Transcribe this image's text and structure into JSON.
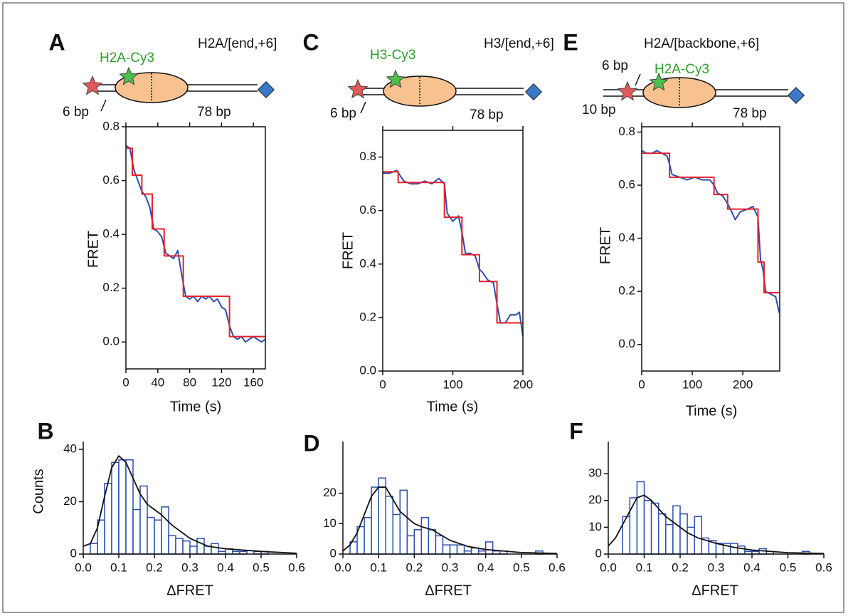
{
  "chart_data": [
    {
      "type": "line",
      "panel": "A",
      "xlabel": "Time (s)",
      "ylabel": "FRET",
      "xlim": [
        0,
        175
      ],
      "xticks": [
        0,
        40,
        80,
        120,
        160
      ],
      "ylim": [
        -0.1,
        0.8
      ],
      "yticks": [
        {
          "value": 0,
          "label": "0.0"
        },
        0.2,
        0.4,
        0.6,
        0.8
      ],
      "series": [
        {
          "color": "#2a4fb0",
          "x": [
            0,
            5,
            10,
            15,
            20,
            25,
            30,
            35,
            40,
            45,
            50,
            55,
            60,
            65,
            70,
            75,
            80,
            85,
            90,
            95,
            100,
            105,
            110,
            115,
            120,
            125,
            130,
            135,
            140,
            145,
            150,
            155,
            160,
            165,
            170,
            175
          ],
          "values": [
            0.73,
            0.72,
            0.64,
            0.6,
            0.56,
            0.54,
            0.5,
            0.42,
            0.41,
            0.39,
            0.33,
            0.32,
            0.31,
            0.34,
            0.25,
            0.17,
            0.16,
            0.17,
            0.15,
            0.17,
            0.16,
            0.17,
            0.15,
            0.16,
            0.13,
            0.12,
            0.06,
            0.02,
            0.01,
            0.02,
            0.0,
            0.01,
            0.02,
            0.01,
            0.0,
            0.01
          ]
        },
        {
          "color": "#e8202a",
          "x": [
            0,
            8,
            8,
            20,
            20,
            33,
            33,
            48,
            48,
            72,
            72,
            130,
            130,
            175
          ],
          "values": [
            0.72,
            0.72,
            0.62,
            0.62,
            0.55,
            0.55,
            0.42,
            0.42,
            0.32,
            0.32,
            0.17,
            0.17,
            0.02,
            0.02
          ]
        }
      ]
    },
    {
      "type": "line",
      "panel": "C",
      "xlabel": "Time (s)",
      "ylabel": "FRET",
      "xlim": [
        0,
        200
      ],
      "xticks": [
        0,
        100,
        200
      ],
      "ylim": [
        0,
        0.9
      ],
      "yticks": [
        {
          "value": 0,
          "label": "0.0"
        },
        0.2,
        0.4,
        0.6,
        0.8
      ],
      "series": [
        {
          "color": "#2a4fb0",
          "x": [
            0,
            10,
            20,
            30,
            40,
            50,
            60,
            70,
            80,
            88,
            92,
            100,
            108,
            113,
            118,
            125,
            132,
            138,
            142,
            150,
            158,
            163,
            168,
            175,
            182,
            190,
            195,
            200
          ],
          "values": [
            0.74,
            0.74,
            0.75,
            0.71,
            0.7,
            0.7,
            0.71,
            0.7,
            0.72,
            0.7,
            0.59,
            0.56,
            0.58,
            0.52,
            0.44,
            0.44,
            0.43,
            0.38,
            0.37,
            0.34,
            0.33,
            0.25,
            0.18,
            0.18,
            0.21,
            0.21,
            0.22,
            0.13
          ]
        },
        {
          "color": "#e8202a",
          "x": [
            0,
            22,
            22,
            88,
            88,
            113,
            113,
            138,
            138,
            163,
            163,
            200
          ],
          "values": [
            0.745,
            0.745,
            0.705,
            0.705,
            0.575,
            0.575,
            0.435,
            0.435,
            0.335,
            0.335,
            0.18,
            0.18
          ]
        }
      ]
    },
    {
      "type": "line",
      "panel": "E",
      "xlabel": "Time (s)",
      "ylabel": "FRET",
      "xlim": [
        0,
        273
      ],
      "xticks": [
        0,
        100,
        200
      ],
      "ylim": [
        -0.1,
        0.82
      ],
      "yticks": [
        {
          "value": 0,
          "label": "0.0"
        },
        0.2,
        0.4,
        0.6,
        0.8
      ],
      "series": [
        {
          "color": "#2a4fb0",
          "x": [
            0,
            10,
            20,
            30,
            40,
            50,
            55,
            60,
            75,
            90,
            105,
            120,
            135,
            143,
            150,
            160,
            170,
            178,
            185,
            195,
            210,
            220,
            230,
            235,
            240,
            245,
            255,
            265,
            272
          ],
          "values": [
            0.73,
            0.72,
            0.72,
            0.73,
            0.72,
            0.71,
            0.68,
            0.64,
            0.63,
            0.62,
            0.63,
            0.62,
            0.62,
            0.6,
            0.57,
            0.56,
            0.53,
            0.5,
            0.47,
            0.5,
            0.51,
            0.52,
            0.48,
            0.32,
            0.28,
            0.2,
            0.19,
            0.18,
            0.12
          ]
        },
        {
          "color": "#e8202a",
          "x": [
            0,
            55,
            55,
            143,
            143,
            170,
            170,
            230,
            230,
            242,
            242,
            272
          ],
          "values": [
            0.72,
            0.72,
            0.63,
            0.63,
            0.565,
            0.565,
            0.51,
            0.51,
            0.31,
            0.31,
            0.195,
            0.195
          ]
        }
      ]
    },
    {
      "type": "histogram",
      "panel": "B",
      "xlabel": "ΔFRET",
      "ylabel": "Counts",
      "xlim": [
        0,
        0.6
      ],
      "xticks": [
        {
          "value": 0,
          "label": "0.0"
        },
        0.1,
        0.2,
        0.3,
        0.4,
        0.5,
        0.6
      ],
      "ylim": [
        0,
        43
      ],
      "yticks": [
        0,
        20,
        40
      ],
      "color": "#2a4fb0",
      "bins": [
        0,
        0.02,
        0.04,
        0.06,
        0.08,
        0.1,
        0.12,
        0.14,
        0.16,
        0.18,
        0.2,
        0.22,
        0.24,
        0.26,
        0.28,
        0.3,
        0.32,
        0.34,
        0.36,
        0.38,
        0.4,
        0.42,
        0.44,
        0.46,
        0.48,
        0.5,
        0.52,
        0.54,
        0.56,
        0.58,
        0.6
      ],
      "values": [
        0,
        4,
        13,
        27,
        35,
        36,
        36,
        17,
        26,
        14,
        13,
        18,
        7,
        6,
        5,
        3,
        6,
        3,
        4,
        1,
        2,
        1,
        1,
        0,
        1,
        1,
        0,
        0,
        0,
        0
      ],
      "fit": {
        "color": "#111111",
        "x": [
          0,
          0.02,
          0.04,
          0.06,
          0.08,
          0.1,
          0.12,
          0.14,
          0.16,
          0.18,
          0.2,
          0.22,
          0.25,
          0.3,
          0.35,
          0.4,
          0.5,
          0.6
        ],
        "values": [
          3,
          4,
          10,
          22,
          33,
          37.5,
          35,
          29,
          23,
          19,
          17,
          15,
          11,
          6,
          3,
          2,
          1,
          0.3
        ]
      }
    },
    {
      "type": "histogram",
      "panel": "D",
      "xlabel": "ΔFRET",
      "xlim": [
        0,
        0.6
      ],
      "xticks": [
        {
          "value": 0,
          "label": "0.0"
        },
        0.1,
        0.2,
        0.3,
        0.4,
        0.5,
        0.6
      ],
      "ylim": [
        0,
        37
      ],
      "yticks": [
        0,
        10,
        20
      ],
      "color": "#2a4fb0",
      "bins": [
        0,
        0.02,
        0.04,
        0.06,
        0.08,
        0.1,
        0.12,
        0.14,
        0.16,
        0.18,
        0.2,
        0.22,
        0.24,
        0.26,
        0.28,
        0.3,
        0.32,
        0.34,
        0.36,
        0.38,
        0.4,
        0.42,
        0.44,
        0.46,
        0.48,
        0.5,
        0.52,
        0.54,
        0.56,
        0.58,
        0.6
      ],
      "values": [
        0,
        4,
        9,
        12,
        22,
        25,
        19,
        13,
        21,
        6,
        8,
        12,
        8,
        6,
        3,
        3,
        3,
        1,
        2,
        1,
        4,
        1,
        1,
        0,
        0,
        0,
        0,
        1,
        0,
        0
      ],
      "fit": {
        "color": "#111111",
        "x": [
          0,
          0.02,
          0.04,
          0.06,
          0.08,
          0.1,
          0.12,
          0.14,
          0.16,
          0.18,
          0.2,
          0.22,
          0.25,
          0.3,
          0.35,
          0.4,
          0.5,
          0.6
        ],
        "values": [
          1,
          3,
          7,
          13,
          19,
          22,
          22,
          18,
          14,
          12,
          10,
          9,
          8,
          4.5,
          2.5,
          1.5,
          0.5,
          0.2
        ]
      }
    },
    {
      "type": "histogram",
      "panel": "F",
      "xlabel": "ΔFRET",
      "xlim": [
        0,
        0.6
      ],
      "xticks": [
        {
          "value": 0,
          "label": "0.0"
        },
        0.1,
        0.2,
        0.3,
        0.4,
        0.5,
        0.6
      ],
      "ylim": [
        0,
        42
      ],
      "yticks": [
        0,
        10,
        20,
        30
      ],
      "color": "#2a4fb0",
      "bins": [
        0,
        0.02,
        0.04,
        0.06,
        0.08,
        0.1,
        0.12,
        0.14,
        0.16,
        0.18,
        0.2,
        0.22,
        0.24,
        0.26,
        0.28,
        0.3,
        0.32,
        0.34,
        0.36,
        0.38,
        0.4,
        0.42,
        0.44,
        0.46,
        0.48,
        0.5,
        0.52,
        0.54,
        0.56,
        0.58,
        0.6
      ],
      "values": [
        0,
        0,
        14,
        21,
        27,
        20,
        19,
        15,
        11,
        18,
        15,
        10,
        14,
        6,
        5,
        4,
        4,
        4,
        3,
        1,
        1,
        2,
        1,
        0,
        0,
        0,
        0,
        1,
        0,
        0
      ],
      "fit": {
        "color": "#111111",
        "x": [
          0,
          0.02,
          0.04,
          0.06,
          0.08,
          0.1,
          0.12,
          0.14,
          0.16,
          0.18,
          0.2,
          0.22,
          0.25,
          0.3,
          0.35,
          0.4,
          0.5,
          0.6
        ],
        "values": [
          3,
          6,
          11,
          16,
          21,
          22,
          20,
          17,
          14,
          12,
          10,
          8,
          6,
          4,
          2.5,
          1.5,
          0.5,
          0.2
        ]
      }
    }
  ],
  "diagrams": [
    {
      "title": "H2A/[end,+6]",
      "dye": "H2A-Cy3",
      "left": "6 bp",
      "right": "78 bp"
    },
    {
      "title": "H3/[end,+6]",
      "dye": "H3-Cy3",
      "left": "6 bp",
      "right": "78 bp"
    },
    {
      "title": "H2A/[backbone,+6]",
      "dye": "H2A-Cy3",
      "left": "6 bp",
      "left2": "10 bp",
      "right": "78 bp"
    }
  ]
}
